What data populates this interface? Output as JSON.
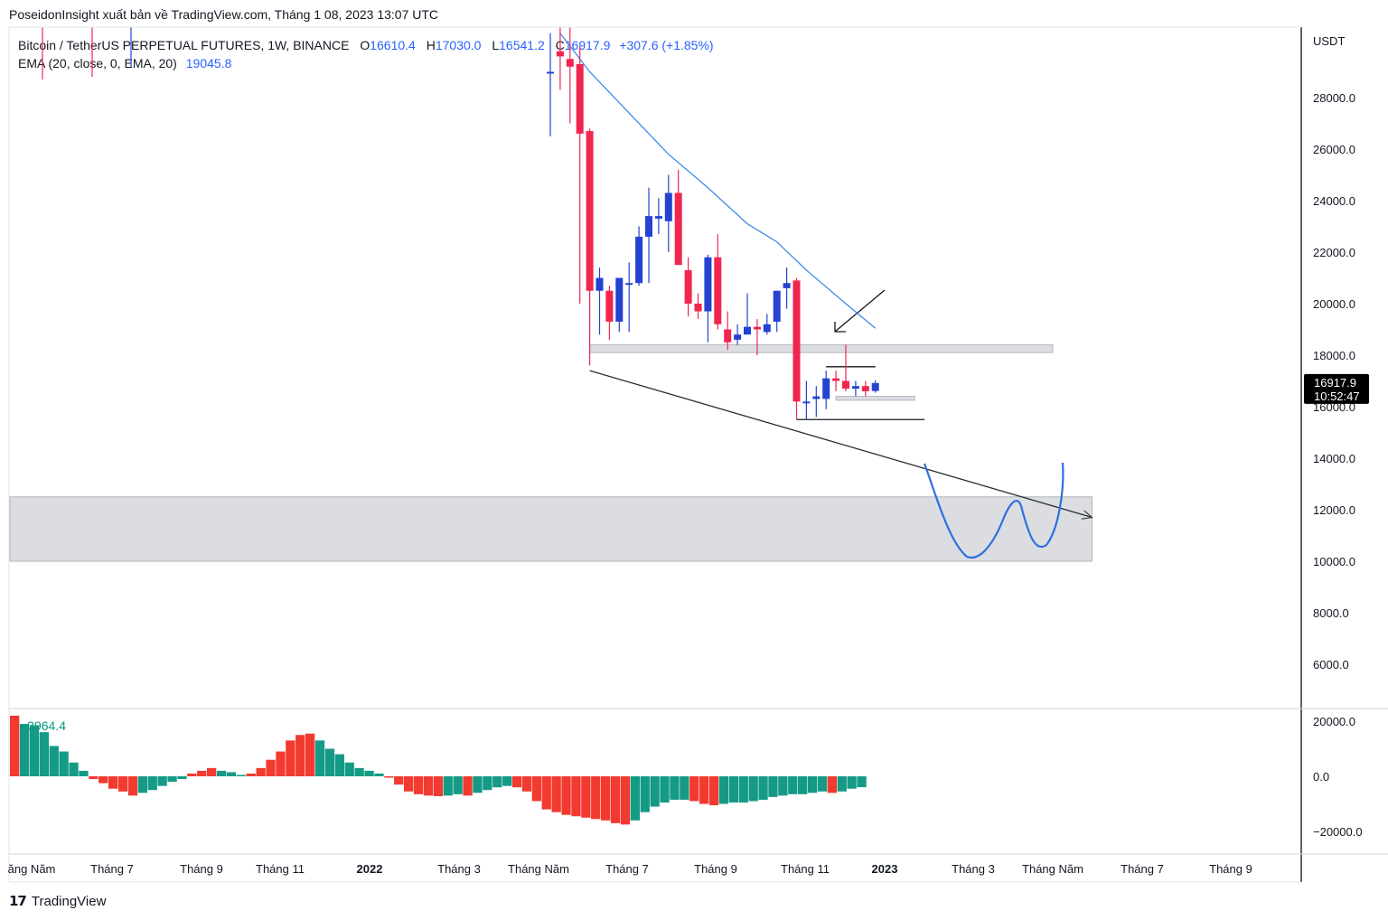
{
  "header": {
    "publisher": "PoseidonInsight xuất bản về TradingView.com, Tháng 1 08, 2023 13:07 UTC"
  },
  "legend": {
    "symbol": "Bitcoin / TetherUS PERPETUAL FUTURES, 1W, BINANCE",
    "open_label": "O",
    "open": "16610.4",
    "high_label": "H",
    "high": "17030.0",
    "low_label": "L",
    "low": "16541.2",
    "close_label": "C",
    "close": "16917.9",
    "change": "+307.6 (+1.85%)",
    "ema_label": "EMA (20, close, 0, EMA, 20)",
    "ema_value": "19045.8"
  },
  "oscillator": {
    "value": "−3964.4"
  },
  "price_badge": {
    "price": "16917.9",
    "countdown": "10:52:47"
  },
  "axis": {
    "currency": "USDT",
    "price_ticks": [
      "28000.0",
      "26000.0",
      "24000.0",
      "22000.0",
      "20000.0",
      "18000.0",
      "16000.0",
      "14000.0",
      "12000.0",
      "10000.0",
      "8000.0",
      "6000.0"
    ],
    "osc_ticks": [
      "20000.0",
      "0.0",
      "−20000.0"
    ],
    "time_labels": [
      {
        "label": "ăng Năm",
        "bold": false
      },
      {
        "label": "Tháng 7",
        "bold": false
      },
      {
        "label": "Tháng 9",
        "bold": false
      },
      {
        "label": "Tháng 11",
        "bold": false
      },
      {
        "label": "2022",
        "bold": true
      },
      {
        "label": "Tháng 3",
        "bold": false
      },
      {
        "label": "Tháng Năm",
        "bold": false
      },
      {
        "label": "Tháng 7",
        "bold": false
      },
      {
        "label": "Tháng 9",
        "bold": false
      },
      {
        "label": "Tháng 11",
        "bold": false
      },
      {
        "label": "2023",
        "bold": true
      },
      {
        "label": "Tháng 3",
        "bold": false
      },
      {
        "label": "Tháng Năm",
        "bold": false
      },
      {
        "label": "Tháng 7",
        "bold": false
      },
      {
        "label": "Tháng 9",
        "bold": false
      }
    ]
  },
  "colors": {
    "up": "#2443d1",
    "down": "#f0264f",
    "osc_up": "#159a86",
    "osc_down": "#f23a30",
    "ema": "#3a8ce8",
    "zone": "#dcdde1"
  },
  "brand": "TradingView",
  "chart_data": {
    "type": "candlestick",
    "interval": "1W",
    "ylim": [
      4500,
      30500
    ],
    "candles": [
      {
        "t": "2022-05-23",
        "o": 29000,
        "h": 30500,
        "l": 26500,
        "c": 29000
      },
      {
        "t": "2022-05-30",
        "o": 29800,
        "h": 31000,
        "l": 28300,
        "c": 29600
      },
      {
        "t": "2022-06-06",
        "o": 29500,
        "h": 31500,
        "l": 27000,
        "c": 29200
      },
      {
        "t": "2022-06-13",
        "o": 29300,
        "h": 30000,
        "l": 20000,
        "c": 26600
      },
      {
        "t": "2022-06-20",
        "o": 26700,
        "h": 26800,
        "l": 17600,
        "c": 20500
      },
      {
        "t": "2022-06-27",
        "o": 20500,
        "h": 21400,
        "l": 18800,
        "c": 21000
      },
      {
        "t": "2022-07-04",
        "o": 20500,
        "h": 20700,
        "l": 18600,
        "c": 19300
      },
      {
        "t": "2022-07-11",
        "o": 19300,
        "h": 21000,
        "l": 18900,
        "c": 21000
      },
      {
        "t": "2022-07-18",
        "o": 20800,
        "h": 21600,
        "l": 18900,
        "c": 20800
      },
      {
        "t": "2022-07-25",
        "o": 20800,
        "h": 23000,
        "l": 20700,
        "c": 22600
      },
      {
        "t": "2022-08-01",
        "o": 22600,
        "h": 24500,
        "l": 20800,
        "c": 23400
      },
      {
        "t": "2022-08-08",
        "o": 23300,
        "h": 24100,
        "l": 22700,
        "c": 23400
      },
      {
        "t": "2022-08-15",
        "o": 23200,
        "h": 25000,
        "l": 22000,
        "c": 24300
      },
      {
        "t": "2022-08-22",
        "o": 24300,
        "h": 25200,
        "l": 21500,
        "c": 21500
      },
      {
        "t": "2022-08-29",
        "o": 21300,
        "h": 21800,
        "l": 19500,
        "c": 20000
      },
      {
        "t": "2022-09-05",
        "o": 20000,
        "h": 20400,
        "l": 19400,
        "c": 19700
      },
      {
        "t": "2022-09-12",
        "o": 19700,
        "h": 21900,
        "l": 18500,
        "c": 21800
      },
      {
        "t": "2022-09-19",
        "o": 21800,
        "h": 22700,
        "l": 19000,
        "c": 19200
      },
      {
        "t": "2022-09-26",
        "o": 19000,
        "h": 19700,
        "l": 18200,
        "c": 18500
      },
      {
        "t": "2022-10-03",
        "o": 18600,
        "h": 19200,
        "l": 18400,
        "c": 18800
      },
      {
        "t": "2022-10-10",
        "o": 18800,
        "h": 20400,
        "l": 18900,
        "c": 19100
      },
      {
        "t": "2022-10-17",
        "o": 19100,
        "h": 19400,
        "l": 18000,
        "c": 19000
      },
      {
        "t": "2022-10-24",
        "o": 18900,
        "h": 19600,
        "l": 18800,
        "c": 19200
      },
      {
        "t": "2022-10-31",
        "o": 19300,
        "h": 20500,
        "l": 18900,
        "c": 20500
      },
      {
        "t": "2022-11-07",
        "o": 20600,
        "h": 21400,
        "l": 19800,
        "c": 20800
      },
      {
        "t": "2022-11-14",
        "o": 20900,
        "h": 21000,
        "l": 15500,
        "c": 16200
      },
      {
        "t": "2022-11-21",
        "o": 16200,
        "h": 17000,
        "l": 15500,
        "c": 16200
      },
      {
        "t": "2022-11-28",
        "o": 16300,
        "h": 16800,
        "l": 15600,
        "c": 16400
      },
      {
        "t": "2022-12-05",
        "o": 16300,
        "h": 17400,
        "l": 15900,
        "c": 17100
      },
      {
        "t": "2022-12-12",
        "o": 17100,
        "h": 17400,
        "l": 16600,
        "c": 17000
      },
      {
        "t": "2022-12-19",
        "o": 17000,
        "h": 18400,
        "l": 16600,
        "c": 16700
      },
      {
        "t": "2022-12-26",
        "o": 16700,
        "h": 17000,
        "l": 16400,
        "c": 16800
      },
      {
        "t": "2023-01-02",
        "o": 16800,
        "h": 17000,
        "l": 16400,
        "c": 16600
      },
      {
        "t": "2023-01-09",
        "o": 16610.4,
        "h": 17030,
        "l": 16541.2,
        "c": 16917.9
      }
    ],
    "ema": [
      {
        "t": "2022-05-30",
        "v": 30500
      },
      {
        "t": "2022-06-20",
        "v": 29000
      },
      {
        "t": "2022-07-18",
        "v": 27400
      },
      {
        "t": "2022-08-15",
        "v": 25800
      },
      {
        "t": "2022-09-12",
        "v": 24500
      },
      {
        "t": "2022-10-10",
        "v": 23100
      },
      {
        "t": "2022-10-31",
        "v": 22400
      },
      {
        "t": "2022-11-21",
        "v": 21300
      },
      {
        "t": "2022-12-19",
        "v": 20000
      },
      {
        "t": "2023-01-09",
        "v": 19045.8
      }
    ],
    "oscillator_hist": [
      22000,
      19000,
      18500,
      16000,
      11000,
      9000,
      5000,
      2000,
      -1000,
      -2500,
      -4500,
      -5500,
      -7000,
      -6000,
      -5000,
      -3500,
      -2000,
      -1000,
      1000,
      2000,
      3000,
      2000,
      1500,
      500,
      1000,
      3000,
      6000,
      9000,
      13000,
      15000,
      15500,
      13000,
      10000,
      8000,
      5000,
      3000,
      2000,
      1000,
      -500,
      -3000,
      -5500,
      -6500,
      -7000,
      -7200,
      -7000,
      -6500,
      -7000,
      -6000,
      -5000,
      -4000,
      -3500,
      -4000,
      -5500,
      -9000,
      -12000,
      -13000,
      -14000,
      -14500,
      -15000,
      -15500,
      -16000,
      -17000,
      -17500,
      -16000,
      -13000,
      -11000,
      -9500,
      -8500,
      -8500,
      -9000,
      -10000,
      -10500,
      -10000,
      -9500,
      -9500,
      -9000,
      -8500,
      -7500,
      -7000,
      -6500,
      -6500,
      -6000,
      -5500,
      -6000,
      -5500,
      -4500,
      -3964.4
    ],
    "zones": [
      {
        "from_t": "2022-06-20",
        "to_t": "2023-05-15",
        "low": 18100,
        "high": 18400
      },
      {
        "from_t": "2022-12-12",
        "to_t": "2023-02-06",
        "low": 16250,
        "high": 16400
      },
      {
        "from_t": "2021-04-26",
        "to_t": "2023-06-12",
        "low": 10000,
        "high": 12500
      }
    ],
    "trendline": {
      "from_t": "2022-06-20",
      "from_v": 17400,
      "to_t": "2023-06-12",
      "to_v": 11700
    },
    "hlines": [
      {
        "from_t": "2022-12-05",
        "to_t": "2023-01-09",
        "v": 17550
      },
      {
        "from_t": "2022-11-14",
        "to_t": "2023-02-13",
        "v": 15500
      }
    ]
  }
}
